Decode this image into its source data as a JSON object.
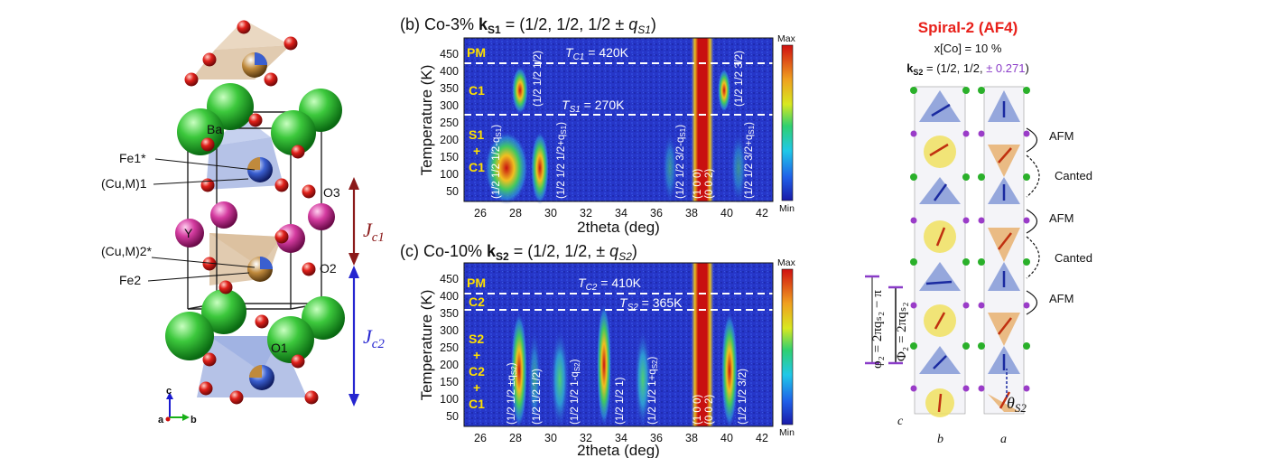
{
  "structure": {
    "atoms": {
      "ba": "Ba",
      "fe1": "Fe1*",
      "cum1": "(Cu,M)1",
      "o3": "O3",
      "y": "Y",
      "cum2": "(Cu,M)2*",
      "o2": "O2",
      "fe2": "Fe2",
      "o1": "O1"
    },
    "couplings": {
      "jc1": "J",
      "jc1_sub": "c1",
      "jc2": "J",
      "jc2_sub": "c2"
    },
    "axes": {
      "c": "c",
      "a": "a",
      "b": "b"
    },
    "colors": {
      "ba": "#3cc83c",
      "y": "#d43ca0",
      "o": "#e0201a",
      "fe": "#c08a3c",
      "cu": "#3a5fd0",
      "jc1": "#8b1a1a",
      "jc2": "#2525d0"
    }
  },
  "panel_b": {
    "title_prefix": "(b) Co-3% ",
    "title_k": "k",
    "title_k_sub": "S1",
    "title_suffix": " = (1/2, 1/2, 1/2 ± ",
    "title_q": "q",
    "title_q_sub": "S1",
    "title_close": ")",
    "ylabel": "Temperature (K)",
    "xlabel": "2theta (deg)",
    "xticks": [
      "26",
      "28",
      "30",
      "32",
      "34",
      "36",
      "38",
      "40",
      "42"
    ],
    "yticks": [
      "450",
      "400",
      "350",
      "300",
      "250",
      "200",
      "150",
      "100",
      "50"
    ],
    "phases": [
      "PM",
      "C1",
      "S1",
      "+",
      "C1"
    ],
    "t_high": {
      "sym": "T",
      "sub": "C1",
      "val": " = 420K"
    },
    "t_low": {
      "sym": "T",
      "sub": "S1",
      "val": " = 270K"
    },
    "peaks": [
      "(1/2 1/2 1/2-q",
      "S1",
      ")",
      "(1/2 1/2 1/2)",
      "(1/2 1/2 1/2+q",
      "S1",
      ")",
      "(1/2 1/2 3/2-q",
      "S1",
      ")",
      "(1 0 0)",
      "(0 0 2)",
      "(1/2 1/2 3/2)",
      "(1/2 1/2 3/2+q",
      "S1",
      ")"
    ],
    "colorbar": {
      "max": "Max",
      "min": "Min"
    }
  },
  "panel_c": {
    "title_prefix": "(c) Co-10% ",
    "title_k": "k",
    "title_k_sub": "S2",
    "title_suffix": " = (1/2, 1/2, ± ",
    "title_q": "q",
    "title_q_sub": "S2",
    "title_close": ")",
    "ylabel": "Temperature (K)",
    "xlabel": "2theta (deg)",
    "xticks": [
      "26",
      "28",
      "30",
      "32",
      "34",
      "36",
      "38",
      "40",
      "42"
    ],
    "yticks": [
      "450",
      "400",
      "350",
      "300",
      "250",
      "200",
      "150",
      "100",
      "50"
    ],
    "phases": [
      "PM",
      "C2",
      "S2",
      "+",
      "C2",
      "+",
      "C1"
    ],
    "t_high": {
      "sym": "T",
      "sub": "C2",
      "val": " = 410K"
    },
    "t_low": {
      "sym": "T",
      "sub": "S2",
      "val": " = 365K"
    },
    "peaks": [
      "(1/2 1/2 ±q",
      "S2",
      ")",
      "(1/2 1/2 1/2)",
      "(1/2 1/2 1-q",
      "S2",
      ")",
      "(1/2 1/2 1)",
      "(1/2 1/2 1+q",
      "S2",
      ")",
      "(1 0 0)",
      "(0 0 2)",
      "(1/2 1/2 3/2)"
    ],
    "colorbar": {
      "max": "Max",
      "min": "Min"
    }
  },
  "spiral": {
    "title": "Spiral-2 (AF4)",
    "conc": "x[Co] = 10 %",
    "k_sym": "k",
    "k_sub": "S2",
    "k_eq": " = (1/2, 1/2, ",
    "k_val": "± 0.271",
    "k_close": ")",
    "labels": [
      "AFM",
      "Canted",
      "AFM",
      "Canted",
      "AFM"
    ],
    "phi_small": "φ₂ = 2πqₛ₂ − π",
    "phi_big": "Φ₂ = 2πqₛ₂",
    "theta": "θ",
    "theta_sub": "S2",
    "axis_c": "c",
    "axis_b": "b",
    "axis_a": "a",
    "title_color": "#e8201a",
    "k_val_color": "#8a3cc8"
  }
}
